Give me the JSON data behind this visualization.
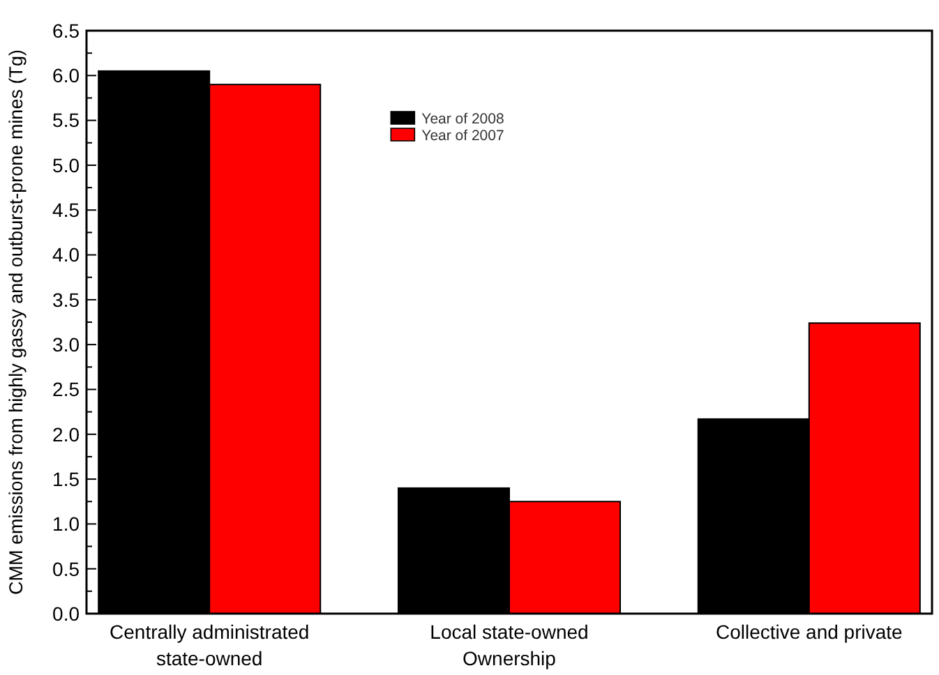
{
  "chart_data": {
    "type": "bar",
    "ylabel": "CMM emissions from highly gassy and outburst-prone mines (Tg)",
    "categories": [
      "Centrally administrated\nstate-owned",
      "Local state-owned\nOwnership",
      "Collective and private"
    ],
    "series": [
      {
        "name": "Year of 2008",
        "color": "#000000",
        "values": [
          6.05,
          1.4,
          2.17
        ]
      },
      {
        "name": "Year of 2007",
        "color": "#ff0000",
        "values": [
          5.9,
          1.25,
          3.24
        ]
      }
    ],
    "ylim": [
      0,
      6.5
    ],
    "yticks": [
      {
        "value": 0,
        "label": "0.0"
      },
      0.5,
      {
        "value": 1,
        "label": "1.0"
      },
      1.5,
      {
        "value": 2,
        "label": "2.0"
      },
      2.5,
      {
        "value": 3,
        "label": "3.0"
      },
      3.5,
      {
        "value": 4,
        "label": "4.0"
      },
      4.5,
      {
        "value": 5,
        "label": "5.0"
      },
      5.5,
      {
        "value": 6,
        "label": "6.0"
      },
      6.5
    ],
    "legend": "top",
    "grid": false
  }
}
